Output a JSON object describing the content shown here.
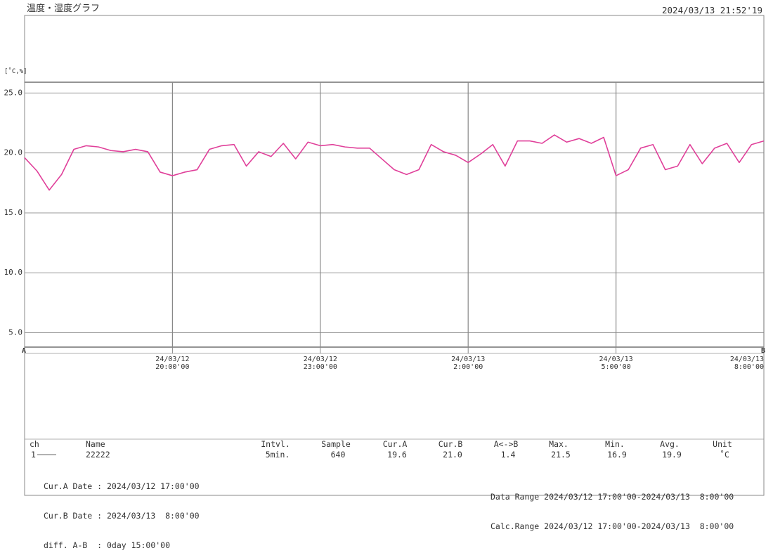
{
  "header": {
    "title": "温度・湿度グラフ",
    "timestamp": "2024/03/13 21:52'19"
  },
  "chart_data": {
    "type": "line",
    "y_label": "[˚C,%]",
    "cursor_a": "A",
    "cursor_b": "B",
    "x": [
      "2024-03-12T17:00",
      "2024-03-12T17:15",
      "2024-03-12T17:30",
      "2024-03-12T17:45",
      "2024-03-12T18:00",
      "2024-03-12T18:15",
      "2024-03-12T18:30",
      "2024-03-12T18:45",
      "2024-03-12T19:00",
      "2024-03-12T19:15",
      "2024-03-12T19:30",
      "2024-03-12T19:45",
      "2024-03-12T20:00",
      "2024-03-12T20:15",
      "2024-03-12T20:30",
      "2024-03-12T20:45",
      "2024-03-12T21:00",
      "2024-03-12T21:15",
      "2024-03-12T21:30",
      "2024-03-12T21:45",
      "2024-03-12T22:00",
      "2024-03-12T22:15",
      "2024-03-12T22:30",
      "2024-03-12T22:45",
      "2024-03-12T23:00",
      "2024-03-12T23:15",
      "2024-03-12T23:30",
      "2024-03-12T23:45",
      "2024-03-13T00:00",
      "2024-03-13T00:15",
      "2024-03-13T00:30",
      "2024-03-13T00:45",
      "2024-03-13T01:00",
      "2024-03-13T01:15",
      "2024-03-13T01:30",
      "2024-03-13T01:45",
      "2024-03-13T02:00",
      "2024-03-13T02:15",
      "2024-03-13T02:30",
      "2024-03-13T02:45",
      "2024-03-13T03:00",
      "2024-03-13T03:15",
      "2024-03-13T03:30",
      "2024-03-13T03:45",
      "2024-03-13T04:00",
      "2024-03-13T04:15",
      "2024-03-13T04:30",
      "2024-03-13T04:45",
      "2024-03-13T05:00",
      "2024-03-13T05:15",
      "2024-03-13T05:30",
      "2024-03-13T05:45",
      "2024-03-13T06:00",
      "2024-03-13T06:15",
      "2024-03-13T06:30",
      "2024-03-13T06:45",
      "2024-03-13T07:00",
      "2024-03-13T07:15",
      "2024-03-13T07:30",
      "2024-03-13T07:45",
      "2024-03-13T08:00"
    ],
    "series": [
      {
        "name": "22222",
        "color": "#e0409a",
        "values": [
          19.6,
          18.5,
          16.9,
          18.2,
          20.3,
          20.6,
          20.5,
          20.2,
          20.1,
          20.3,
          20.1,
          18.4,
          18.1,
          18.4,
          18.6,
          20.3,
          20.6,
          20.7,
          18.9,
          20.1,
          19.7,
          20.8,
          19.5,
          20.9,
          20.6,
          20.7,
          20.5,
          20.4,
          20.4,
          19.5,
          18.6,
          18.2,
          18.6,
          20.7,
          20.1,
          19.8,
          19.2,
          19.9,
          20.7,
          18.9,
          21.0,
          21.0,
          20.8,
          21.5,
          20.9,
          21.2,
          20.8,
          21.3,
          18.1,
          18.6,
          20.4,
          20.7,
          18.6,
          18.9,
          20.7,
          19.1,
          20.4,
          20.8,
          19.2,
          20.7,
          21.0
        ]
      }
    ],
    "xlim": [
      "2024-03-12T17:00",
      "2024-03-13T08:00"
    ],
    "xticks": [
      {
        "value": "2024-03-12T20:00",
        "label": "24/03/12\n20:00'00"
      },
      {
        "value": "2024-03-12T23:00",
        "label": "24/03/12\n23:00'00"
      },
      {
        "value": "2024-03-13T02:00",
        "label": "24/03/13\n2:00'00"
      },
      {
        "value": "2024-03-13T05:00",
        "label": "24/03/13\n5:00'00"
      },
      {
        "value": "2024-03-13T08:00",
        "label": "24/03/13\n8:00'00"
      }
    ],
    "ylim": [
      3.8,
      25.9
    ],
    "yticks": [
      {
        "value": 5,
        "label": "5.0"
      },
      {
        "value": 10,
        "label": "10.0"
      },
      {
        "value": 15,
        "label": "15.0"
      },
      {
        "value": 20,
        "label": "20.0"
      },
      {
        "value": 25,
        "label": "25.0"
      }
    ],
    "grid": true
  },
  "info": {
    "ch_header": "ch",
    "name_header": "Name",
    "ch": "1",
    "stats": [
      {
        "header": "Intvl.",
        "value": "5min."
      },
      {
        "header": "Sample",
        "value": "640"
      },
      {
        "header": "Cur.A",
        "value": "19.6"
      },
      {
        "header": "Cur.B",
        "value": "21.0"
      },
      {
        "header": "A<->B",
        "value": "1.4"
      },
      {
        "header": "Max.",
        "value": "21.5"
      },
      {
        "header": "Min.",
        "value": "16.9"
      },
      {
        "header": "Avg.",
        "value": "19.9"
      },
      {
        "header": "Unit",
        "value": "˚C"
      }
    ],
    "cursors": [
      "Cur.A Date : 2024/03/12 17:00'00",
      "Cur.B Date : 2024/03/13  8:00'00",
      "diff. A-B  : 0day 15:00'00"
    ],
    "ranges": [
      "Data Range 2024/03/12 17:00'00-2024/03/13  8:00'00",
      "Calc.Range 2024/03/12 17:00'00-2024/03/13  8:00'00"
    ]
  }
}
